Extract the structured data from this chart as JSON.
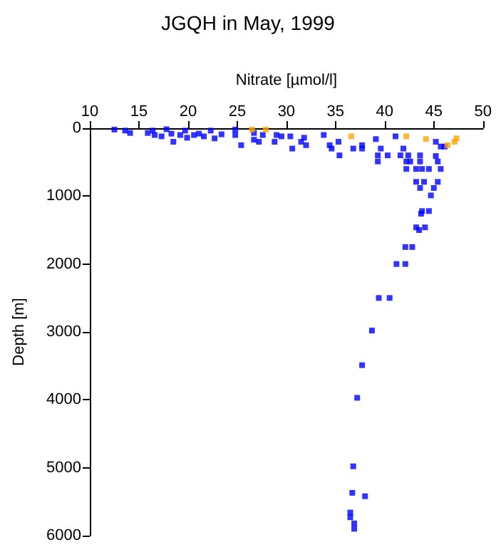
{
  "chart_data": {
    "type": "scatter",
    "title": "JGQH in May, 1999",
    "xlabel": "Nitrate [µmol/l]",
    "ylabel": "Depth [m]",
    "xlim": [
      10,
      50
    ],
    "xticks": [
      10,
      15,
      20,
      25,
      30,
      35,
      40,
      45,
      50
    ],
    "ylim": [
      6000,
      0
    ],
    "yticks": [
      0,
      1000,
      2000,
      3000,
      4000,
      5000,
      6000
    ],
    "marker": "square",
    "series": [
      {
        "color": "#0000ff",
        "x": [
          12.5,
          13.6,
          14.1,
          15.9,
          16.4,
          16.6,
          17.3,
          17.8,
          18.3,
          18.5,
          19.2,
          19.7,
          19.9,
          20.6,
          21.1,
          21.6,
          22.3,
          22.7,
          23.4,
          24.8,
          24.8,
          25.4,
          26.7,
          26.7,
          27.2,
          27.6,
          28.8,
          29,
          29.5,
          30.4,
          30.6,
          31.8,
          31.5,
          32,
          33.8,
          34.4,
          34.6,
          35.3,
          35.4,
          36.8,
          37.7,
          37.7,
          39.1,
          39.3,
          39.6,
          39.3,
          40.3,
          41.1,
          41.6,
          41.9,
          42.2,
          42.4,
          42.6,
          42.2,
          43.2,
          43.2,
          43.6,
          43.6,
          43.8,
          43.6,
          44,
          44.5,
          45,
          44.7,
          45.2,
          45.2,
          45.4,
          45.7,
          45.7,
          46.1,
          45.4,
          43.8,
          44.5,
          43.2,
          44.1,
          43.7,
          43.5,
          42.1,
          42.8,
          41.2,
          42.1,
          39.4,
          40.5,
          38.7,
          37.7,
          37.2,
          36.8,
          36.7,
          38,
          36.5,
          36.5,
          36.9,
          36.9
        ],
        "values": [
          20,
          35,
          70,
          70,
          35,
          100,
          120,
          15,
          80,
          200,
          100,
          35,
          140,
          100,
          80,
          120,
          35,
          150,
          90,
          20,
          100,
          250,
          70,
          170,
          200,
          100,
          200,
          100,
          120,
          120,
          300,
          140,
          200,
          250,
          100,
          250,
          300,
          200,
          400,
          300,
          250,
          300,
          160,
          400,
          300,
          490,
          400,
          120,
          400,
          300,
          490,
          400,
          490,
          600,
          600,
          790,
          400,
          490,
          600,
          880,
          790,
          600,
          880,
          990,
          200,
          410,
          490,
          600,
          270,
          270,
          790,
          1220,
          1220,
          1460,
          1460,
          1260,
          1500,
          1750,
          1750,
          2000,
          2000,
          2500,
          2500,
          2980,
          3490,
          3970,
          4980,
          5370,
          5420,
          5660,
          5730,
          5820,
          5900
        ]
      },
      {
        "color": "#ffa500",
        "x": [
          26.5,
          27.9,
          36.6,
          42.2,
          44.2,
          46.4,
          47.1,
          47.3
        ],
        "values": [
          20,
          20,
          120,
          120,
          160,
          250,
          200,
          150
        ]
      }
    ]
  }
}
